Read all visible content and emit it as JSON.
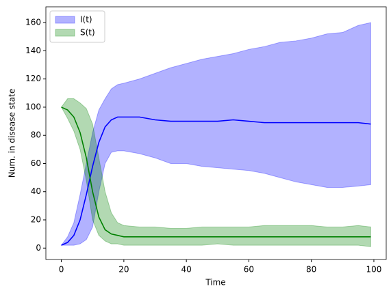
{
  "chart_data": {
    "type": "band_line",
    "xlabel": "Time",
    "ylabel": "Num. in disease state",
    "x": [
      0,
      2,
      4,
      6,
      8,
      10,
      12,
      14,
      16,
      18,
      20,
      25,
      30,
      35,
      40,
      45,
      50,
      55,
      60,
      65,
      70,
      75,
      80,
      85,
      90,
      95,
      99
    ],
    "series": [
      {
        "name": "I(t)",
        "color": "#0000ff",
        "values": [
          2,
          4,
          9,
          20,
          38,
          58,
          75,
          86,
          91,
          93,
          93,
          93,
          91,
          90,
          90,
          90,
          90,
          91,
          90,
          89,
          89,
          89,
          89,
          89,
          89,
          89,
          88
        ],
        "upper": [
          2,
          8,
          18,
          38,
          60,
          82,
          98,
          106,
          113,
          116,
          117,
          120,
          124,
          128,
          131,
          134,
          136,
          138,
          141,
          143,
          146,
          147,
          149,
          152,
          153,
          158,
          160
        ],
        "lower": [
          2,
          2,
          2,
          3,
          6,
          15,
          40,
          60,
          68,
          69,
          69,
          67,
          64,
          60,
          60,
          58,
          57,
          56,
          55,
          53,
          50,
          47,
          45,
          43,
          43,
          44,
          45
        ]
      },
      {
        "name": "S(t)",
        "color": "#008000",
        "values": [
          100,
          98,
          93,
          82,
          64,
          40,
          22,
          13,
          10,
          9,
          8,
          8,
          8,
          8,
          8,
          8,
          8,
          8,
          8,
          8,
          8,
          8,
          8,
          8,
          8,
          8,
          8
        ],
        "upper": [
          100,
          106,
          106,
          103,
          99,
          88,
          64,
          40,
          25,
          18,
          16,
          15,
          15,
          14,
          14,
          15,
          15,
          15,
          15,
          16,
          16,
          16,
          16,
          15,
          15,
          16,
          15
        ],
        "lower": [
          100,
          92,
          83,
          70,
          48,
          20,
          9,
          5,
          3,
          3,
          2,
          2,
          2,
          2,
          2,
          2,
          3,
          2,
          2,
          2,
          2,
          2,
          2,
          2,
          2,
          2,
          1
        ]
      }
    ],
    "band_opacity": 0.3,
    "xlim": [
      -4.95,
      103.95
    ],
    "xticks": [
      0,
      20,
      40,
      60,
      80,
      100
    ],
    "ylim": [
      -8.1,
      171.2
    ],
    "yticks": [
      0,
      20,
      40,
      60,
      80,
      100,
      120,
      140,
      160
    ],
    "legend": "upper left"
  }
}
